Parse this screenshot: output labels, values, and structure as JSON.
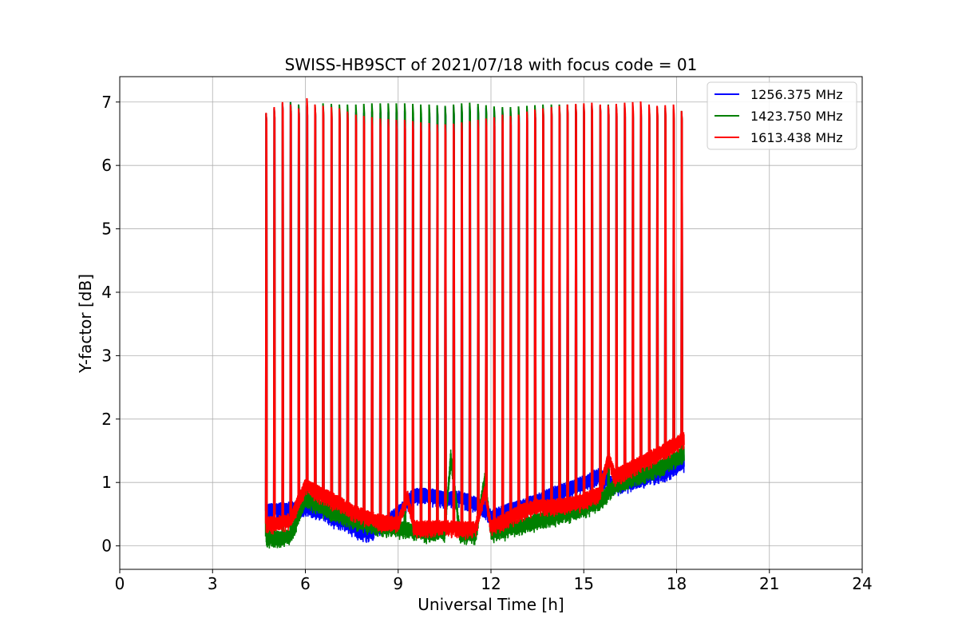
{
  "chart_data": {
    "type": "line",
    "title": "SWISS-HB9SCT of 2021/07/18 with focus code = 01",
    "xlabel": "Universal Time [h]",
    "ylabel": "Y-factor [dB]",
    "xlim": [
      0,
      24
    ],
    "ylim": [
      -0.37,
      7.4
    ],
    "xticks": [
      0,
      3,
      6,
      9,
      12,
      15,
      18,
      21,
      24
    ],
    "yticks": [
      0,
      1,
      2,
      3,
      4,
      5,
      6,
      7
    ],
    "grid": true,
    "legend_position": "top-right",
    "peak_times_h": [
      4.73,
      4.99,
      5.26,
      5.52,
      5.78,
      6.05,
      6.31,
      6.57,
      6.84,
      7.1,
      7.36,
      7.63,
      7.89,
      8.15,
      8.42,
      8.68,
      8.94,
      9.21,
      9.47,
      9.73,
      10.0,
      10.26,
      10.52,
      10.79,
      11.05,
      11.31,
      11.58,
      11.84,
      12.1,
      12.37,
      12.63,
      12.89,
      13.16,
      13.42,
      13.68,
      13.95,
      14.21,
      14.47,
      14.74,
      15.0,
      15.26,
      15.53,
      15.79,
      16.05,
      16.32,
      16.58,
      16.84,
      17.11,
      17.37,
      17.63,
      17.9,
      18.16
    ],
    "series": [
      {
        "name": "1256.375 MHz",
        "color": "#0000ff",
        "x": [
          4.73,
          5.0,
          5.5,
          6.0,
          6.5,
          7.0,
          7.5,
          8.0,
          8.5,
          9.0,
          9.5,
          10.0,
          10.5,
          11.0,
          11.5,
          11.8,
          12.0,
          12.5,
          13.0,
          13.5,
          14.0,
          14.5,
          15.0,
          15.5,
          16.0,
          16.5,
          17.0,
          17.5,
          18.0,
          18.2
        ],
        "y": [
          0.55,
          0.56,
          0.58,
          0.62,
          0.55,
          0.42,
          0.32,
          0.2,
          0.33,
          0.52,
          0.8,
          0.8,
          0.74,
          0.76,
          0.66,
          0.58,
          0.45,
          0.55,
          0.62,
          0.72,
          0.82,
          0.9,
          1.0,
          1.12,
          0.95,
          1.02,
          1.08,
          1.16,
          1.26,
          1.32
        ],
        "peak_y": [
          6.82,
          6.9,
          6.98,
          7.0,
          6.96,
          6.93,
          6.92,
          6.9,
          6.88,
          6.86,
          6.85,
          6.84,
          6.83,
          6.85,
          6.83,
          6.84,
          6.84,
          6.86,
          6.88,
          6.89,
          6.9,
          6.91,
          6.92,
          6.93,
          6.93,
          6.93,
          6.92,
          6.91,
          6.9,
          6.9,
          6.89,
          6.89,
          6.89,
          6.89,
          6.9,
          6.9,
          6.9,
          6.91,
          6.92,
          6.92,
          6.93,
          6.93,
          6.93,
          6.92,
          6.91,
          6.9,
          6.9,
          6.89,
          6.88,
          6.87,
          6.85,
          6.84
        ]
      },
      {
        "name": "1423.750 MHz",
        "color": "#008000",
        "x": [
          4.73,
          5.0,
          5.5,
          6.0,
          6.5,
          7.0,
          7.5,
          8.0,
          8.5,
          9.0,
          9.5,
          10.0,
          10.5,
          10.7,
          11.0,
          11.5,
          11.8,
          12.0,
          12.5,
          13.0,
          13.5,
          14.0,
          14.5,
          15.0,
          15.5,
          16.0,
          16.5,
          17.0,
          17.5,
          18.0,
          18.2
        ],
        "y": [
          0.15,
          0.12,
          0.14,
          0.75,
          0.62,
          0.5,
          0.42,
          0.35,
          0.3,
          0.28,
          0.25,
          0.2,
          0.22,
          1.4,
          0.18,
          0.18,
          1.05,
          0.22,
          0.26,
          0.32,
          0.4,
          0.46,
          0.52,
          0.6,
          0.7,
          0.95,
          1.05,
          1.15,
          1.25,
          1.38,
          1.45
        ],
        "peak_y": [
          6.82,
          6.9,
          6.98,
          7.0,
          6.96,
          6.95,
          6.96,
          6.98,
          6.97,
          6.96,
          6.96,
          6.96,
          6.97,
          6.98,
          6.98,
          6.98,
          6.98,
          6.98,
          6.97,
          6.96,
          6.96,
          6.95,
          6.94,
          6.96,
          6.98,
          6.99,
          6.97,
          6.95,
          6.93,
          6.92,
          6.92,
          6.93,
          6.94,
          6.95,
          6.96,
          6.96,
          6.96,
          6.96,
          6.96,
          6.95,
          6.95,
          6.95,
          6.96,
          6.96,
          6.96,
          6.95,
          6.94,
          6.93,
          6.92,
          6.91,
          6.89,
          6.86
        ]
      },
      {
        "name": "1613.438 MHz",
        "color": "#ff0000",
        "x": [
          4.73,
          5.0,
          5.5,
          6.0,
          6.5,
          7.0,
          7.5,
          8.0,
          8.5,
          9.0,
          9.3,
          9.5,
          10.0,
          10.5,
          11.0,
          11.5,
          11.8,
          12.0,
          12.5,
          13.0,
          13.5,
          14.0,
          14.5,
          15.0,
          15.5,
          15.8,
          16.0,
          16.5,
          17.0,
          17.5,
          18.0,
          18.2
        ],
        "y": [
          0.35,
          0.35,
          0.4,
          0.95,
          0.82,
          0.7,
          0.55,
          0.45,
          0.38,
          0.35,
          0.78,
          0.3,
          0.28,
          0.3,
          0.27,
          0.28,
          0.85,
          0.3,
          0.42,
          0.55,
          0.63,
          0.62,
          0.66,
          0.72,
          0.82,
          1.4,
          1.1,
          1.22,
          1.35,
          1.48,
          1.62,
          1.68
        ],
        "peak_y": [
          6.83,
          6.92,
          7.0,
          6.96,
          6.9,
          7.06,
          6.96,
          6.94,
          6.92,
          6.9,
          6.85,
          6.8,
          6.78,
          6.76,
          6.74,
          6.73,
          6.72,
          6.72,
          6.7,
          6.68,
          6.67,
          6.65,
          6.65,
          6.66,
          6.68,
          6.7,
          6.72,
          6.74,
          6.76,
          6.8,
          6.78,
          6.8,
          6.85,
          6.88,
          6.9,
          6.92,
          6.94,
          6.96,
          6.97,
          6.98,
          6.99,
          6.96,
          6.95,
          6.97,
          6.99,
          7.0,
          7.01,
          6.96,
          6.94,
          6.95,
          6.96,
          6.86
        ]
      }
    ]
  }
}
